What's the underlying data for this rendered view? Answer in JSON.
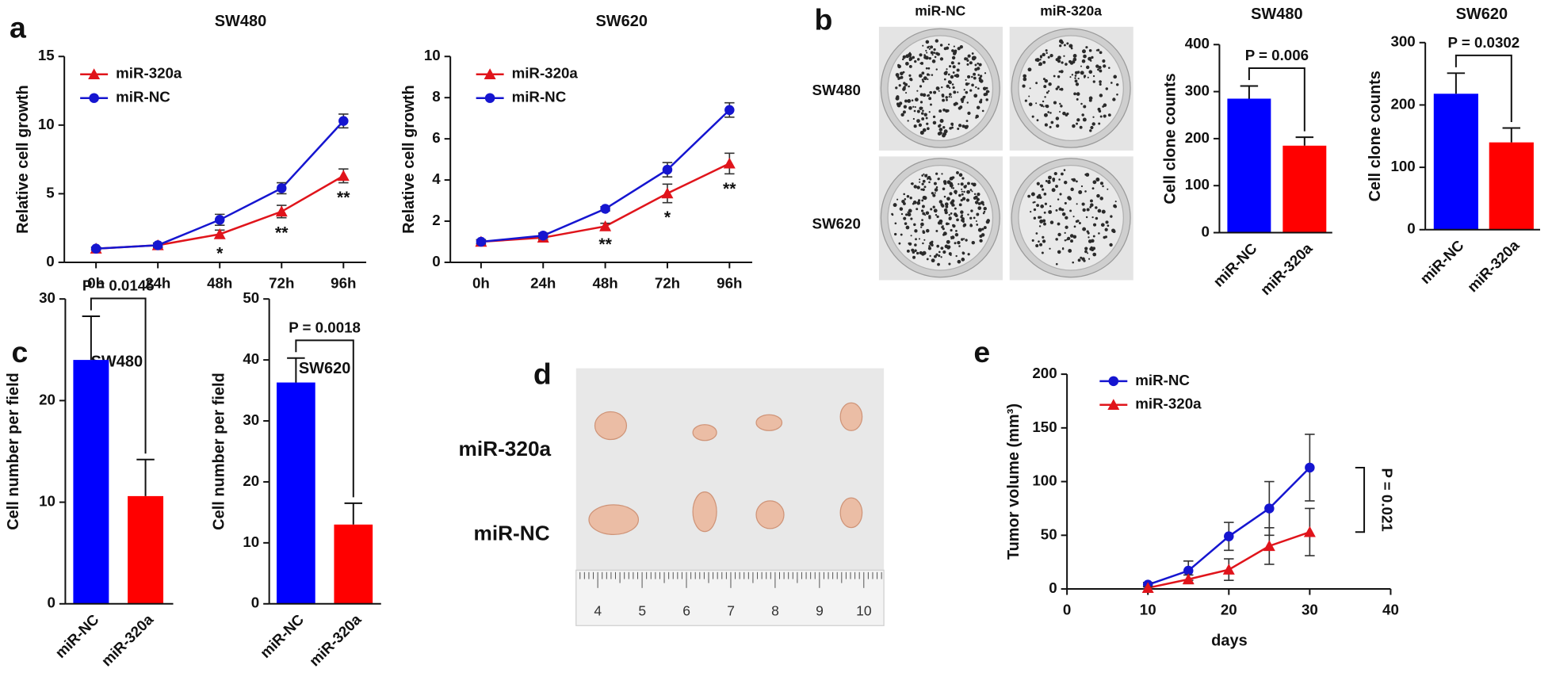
{
  "figure": {
    "panel_labels": [
      "a",
      "b",
      "c",
      "d",
      "e"
    ],
    "plate_columns": [
      "miR-NC",
      "miR-320a"
    ],
    "plate_rows": [
      "SW480",
      "SW620"
    ],
    "tumor_rows": [
      "miR-320a",
      "miR-NC"
    ],
    "ruler_labels": [
      4,
      5,
      6,
      7,
      8,
      9,
      10
    ]
  },
  "chart_data": [
    {
      "type": "line",
      "title": "SW480",
      "y_label": "Relative cell growth",
      "categories": [
        "0h",
        "24h",
        "48h",
        "72h",
        "96h"
      ],
      "series": [
        {
          "name": "miR-320a",
          "color": "#e0141b",
          "marker": "triangle",
          "values": [
            1,
            1.25,
            2.05,
            3.7,
            6.3
          ],
          "errors": [
            0.1,
            0.15,
            0.3,
            0.45,
            0.5
          ]
        },
        {
          "name": "miR-NC",
          "color": "#1515d0",
          "marker": "circle",
          "values": [
            1,
            1.25,
            3.1,
            5.4,
            10.3
          ],
          "errors": [
            0.1,
            0.15,
            0.4,
            0.4,
            0.5
          ]
        }
      ],
      "significance": [
        null,
        null,
        "*",
        "**",
        "**"
      ],
      "ylim": [
        0,
        15
      ],
      "yticks": [
        0,
        5,
        10,
        15
      ]
    },
    {
      "type": "line",
      "title": "SW620",
      "y_label": "Relative cell growth",
      "categories": [
        "0h",
        "24h",
        "48h",
        "72h",
        "96h"
      ],
      "series": [
        {
          "name": "miR-320a",
          "color": "#e0141b",
          "marker": "triangle",
          "values": [
            1,
            1.2,
            1.75,
            3.35,
            4.8
          ],
          "errors": [
            0.1,
            0.1,
            0.15,
            0.45,
            0.5
          ]
        },
        {
          "name": "miR-NC",
          "color": "#1515d0",
          "marker": "circle",
          "values": [
            1,
            1.3,
            2.6,
            4.5,
            7.4
          ],
          "errors": [
            0.1,
            0.12,
            0.1,
            0.35,
            0.35
          ]
        }
      ],
      "significance": [
        null,
        null,
        "**",
        "*",
        "**"
      ],
      "ylim": [
        0,
        10
      ],
      "yticks": [
        0,
        2,
        4,
        6,
        8,
        10
      ]
    },
    {
      "type": "bar",
      "title": "SW480",
      "y_label": "Cell clone counts",
      "categories": [
        "miR-NC",
        "miR-320a"
      ],
      "values": [
        285,
        185
      ],
      "errors": [
        27,
        18
      ],
      "colors": [
        "#0000ff",
        "#ff0000"
      ],
      "comparison": "P = 0.006",
      "ylim": [
        0,
        400
      ],
      "yticks": [
        0,
        100,
        200,
        300,
        400
      ]
    },
    {
      "type": "bar",
      "title": "SW620",
      "y_label": "Cell clone counts",
      "categories": [
        "miR-NC",
        "miR-320a"
      ],
      "values": [
        218,
        140
      ],
      "errors": [
        33,
        23
      ],
      "colors": [
        "#0000ff",
        "#ff0000"
      ],
      "comparison": "P = 0.0302",
      "ylim": [
        0,
        300
      ],
      "yticks": [
        0,
        100,
        200,
        300
      ]
    },
    {
      "type": "bar",
      "title": "SW480",
      "y_label": "Cell number per field",
      "categories": [
        "miR-NC",
        "miR-320a"
      ],
      "values": [
        24,
        10.6
      ],
      "errors": [
        4.3,
        3.6
      ],
      "colors": [
        "#0000ff",
        "#ff0000"
      ],
      "comparison": "P = 0.0145",
      "ylim": [
        0,
        30
      ],
      "yticks": [
        0,
        10,
        20,
        30
      ]
    },
    {
      "type": "bar",
      "title": "SW620",
      "y_label": "Cell number per field",
      "categories": [
        "miR-NC",
        "miR-320a"
      ],
      "values": [
        36.3,
        13
      ],
      "errors": [
        4,
        3.5
      ],
      "colors": [
        "#0000ff",
        "#ff0000"
      ],
      "comparison": "P = 0.0018",
      "ylim": [
        0,
        50
      ],
      "yticks": [
        0,
        10,
        20,
        30,
        40,
        50
      ]
    },
    {
      "type": "line",
      "x_label": "days",
      "y_label": "Tumor volume (mm³)",
      "x": [
        10,
        15,
        20,
        25,
        30
      ],
      "series": [
        {
          "name": "miR-NC",
          "color": "#1515d0",
          "marker": "circle",
          "values": [
            4,
            17,
            49,
            75,
            113
          ],
          "errors": [
            2,
            9,
            13,
            25,
            31
          ]
        },
        {
          "name": "miR-320a",
          "color": "#e0141b",
          "marker": "triangle",
          "values": [
            1,
            9,
            18,
            40,
            53
          ],
          "errors": [
            1,
            4,
            10,
            17,
            22
          ]
        }
      ],
      "comparison": "P = 0.021",
      "xlim": [
        0,
        40
      ],
      "xticks": [
        0,
        10,
        20,
        30,
        40
      ],
      "ylim": [
        0,
        200
      ],
      "yticks": [
        0,
        50,
        100,
        150,
        200
      ]
    }
  ]
}
